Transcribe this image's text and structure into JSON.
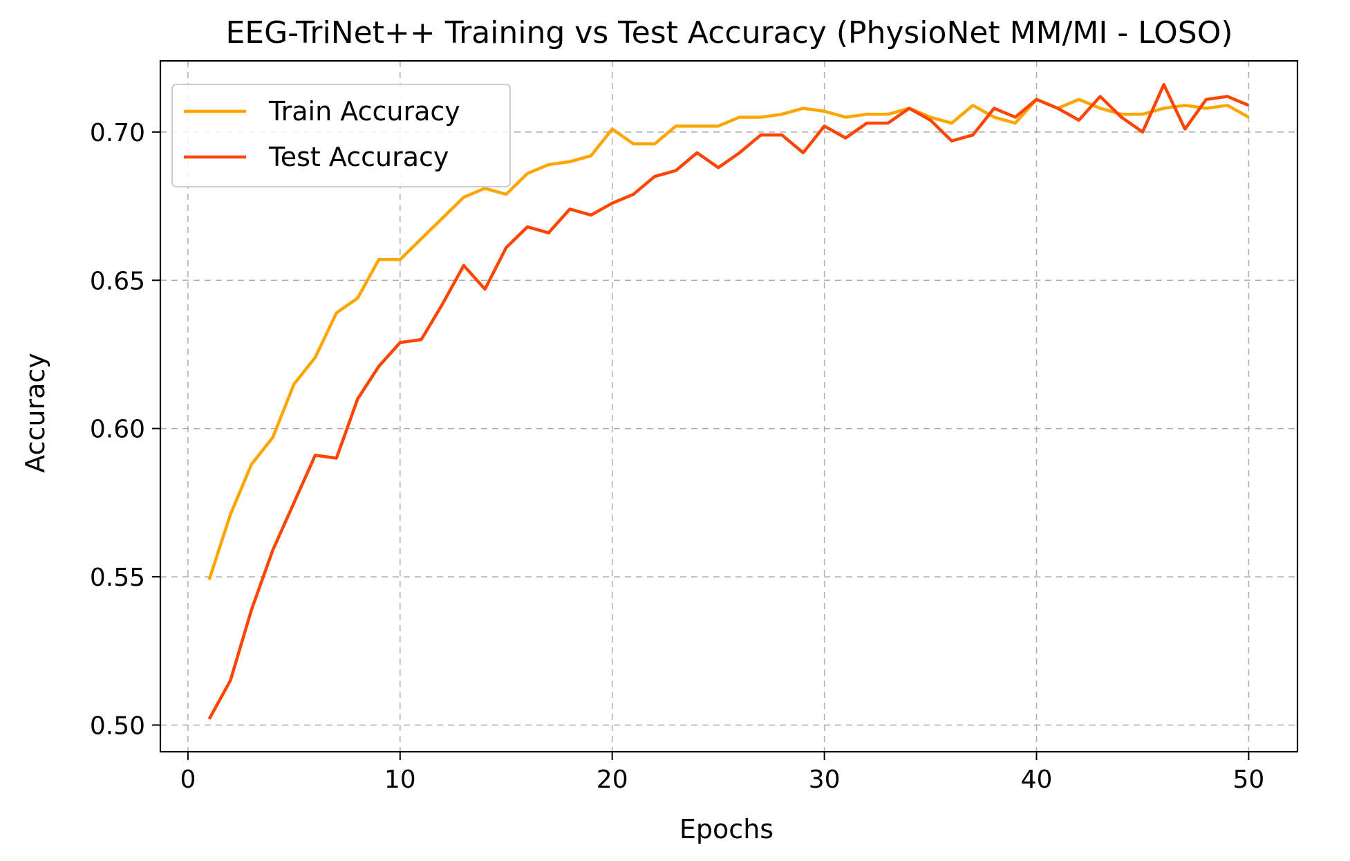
{
  "chart_data": {
    "type": "line",
    "title": "EEG-TriNet++ Training vs Test Accuracy (PhysioNet MM/MI - LOSO)",
    "xlabel": "Epochs",
    "ylabel": "Accuracy",
    "xlim": [
      -1.3,
      52.3
    ],
    "ylim": [
      0.491,
      0.724
    ],
    "xticks": [
      0,
      10,
      20,
      30,
      40,
      50
    ],
    "xtick_labels": [
      "0",
      "10",
      "20",
      "30",
      "40",
      "50"
    ],
    "yticks": [
      0.5,
      0.55,
      0.6,
      0.65,
      0.7
    ],
    "ytick_labels": [
      "0.50",
      "0.55",
      "0.60",
      "0.65",
      "0.70"
    ],
    "grid": true,
    "legend_position": "upper-left",
    "x": [
      1,
      2,
      3,
      4,
      5,
      6,
      7,
      8,
      9,
      10,
      11,
      12,
      13,
      14,
      15,
      16,
      17,
      18,
      19,
      20,
      21,
      22,
      23,
      24,
      25,
      26,
      27,
      28,
      29,
      30,
      31,
      32,
      33,
      34,
      35,
      36,
      37,
      38,
      39,
      40,
      41,
      42,
      43,
      44,
      45,
      46,
      47,
      48,
      49,
      50
    ],
    "series": [
      {
        "name": "Train Accuracy",
        "color": "#FFA500",
        "values": [
          0.549,
          0.571,
          0.588,
          0.597,
          0.615,
          0.624,
          0.639,
          0.644,
          0.657,
          0.657,
          0.664,
          0.671,
          0.678,
          0.681,
          0.679,
          0.686,
          0.689,
          0.69,
          0.692,
          0.701,
          0.696,
          0.696,
          0.702,
          0.702,
          0.702,
          0.705,
          0.705,
          0.706,
          0.708,
          0.707,
          0.705,
          0.706,
          0.706,
          0.708,
          0.705,
          0.703,
          0.709,
          0.705,
          0.703,
          0.711,
          0.708,
          0.711,
          0.708,
          0.706,
          0.706,
          0.708,
          0.709,
          0.708,
          0.709,
          0.705
        ]
      },
      {
        "name": "Test Accuracy",
        "color": "#FF4500",
        "values": [
          0.502,
          0.515,
          0.539,
          0.559,
          0.575,
          0.591,
          0.59,
          0.61,
          0.621,
          0.629,
          0.63,
          0.642,
          0.655,
          0.647,
          0.661,
          0.668,
          0.666,
          0.674,
          0.672,
          0.676,
          0.679,
          0.685,
          0.687,
          0.693,
          0.688,
          0.693,
          0.699,
          0.699,
          0.693,
          0.702,
          0.698,
          0.703,
          0.703,
          0.708,
          0.704,
          0.697,
          0.699,
          0.708,
          0.705,
          0.711,
          0.708,
          0.704,
          0.712,
          0.705,
          0.7,
          0.716,
          0.701,
          0.711,
          0.712,
          0.709
        ]
      }
    ]
  }
}
